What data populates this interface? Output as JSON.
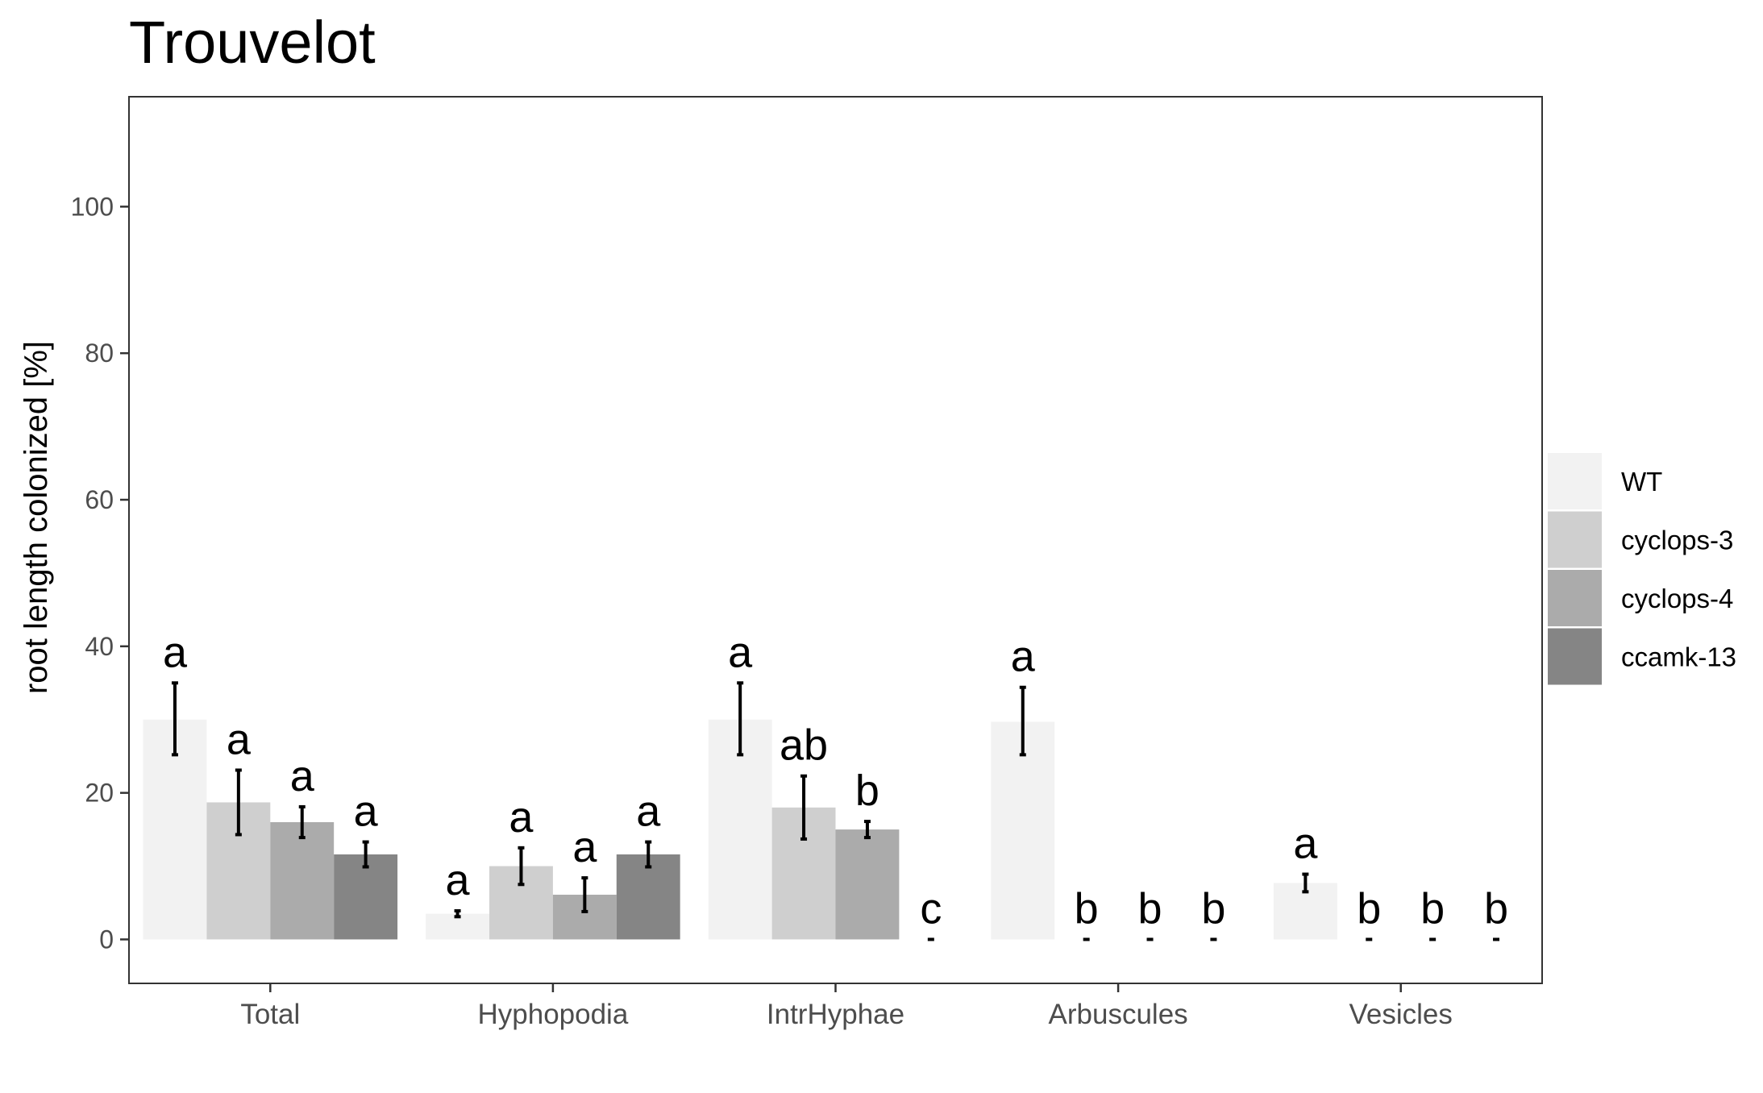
{
  "chart_data": {
    "type": "bar",
    "title": "Trouvelot",
    "xlabel": "",
    "ylabel": "root length colonized [%]",
    "ylim": [
      -6,
      115
    ],
    "yticks": [
      0,
      20,
      40,
      60,
      80,
      100
    ],
    "grid": false,
    "legend_position": "right",
    "categories": [
      "Total",
      "Hyphopodia",
      "IntrHyphae",
      "Arbuscules",
      "Vesicles"
    ],
    "series": [
      {
        "name": "WT",
        "color": "#f2f2f2",
        "values": [
          30,
          3.5,
          30,
          29.7,
          7.7
        ],
        "err_low": [
          25.2,
          3.1,
          25.2,
          25.2,
          6.5
        ],
        "err_high": [
          35,
          3.9,
          35,
          34.4,
          8.9
        ],
        "labels": [
          "a",
          "a",
          "a",
          "a",
          "a"
        ]
      },
      {
        "name": "cyclops-3",
        "color": "#cfcfcf",
        "values": [
          18.7,
          10,
          18,
          0,
          0
        ],
        "err_low": [
          14.3,
          7.5,
          13.7,
          0,
          0
        ],
        "err_high": [
          23.1,
          12.5,
          22.3,
          0,
          0
        ],
        "labels": [
          "a",
          "a",
          "ab",
          "b",
          "b"
        ]
      },
      {
        "name": "cyclops-4",
        "color": "#ababab",
        "values": [
          16,
          6.1,
          15,
          0,
          0
        ],
        "err_low": [
          13.9,
          3.8,
          13.9,
          0,
          0
        ],
        "err_high": [
          18.1,
          8.4,
          16.1,
          0,
          0
        ],
        "labels": [
          "a",
          "a",
          "b",
          "b",
          "b"
        ]
      },
      {
        "name": "ccamk-13",
        "color": "#858585",
        "values": [
          11.6,
          11.6,
          0,
          0,
          0
        ],
        "err_low": [
          9.9,
          9.9,
          0,
          0,
          0
        ],
        "err_high": [
          13.3,
          13.3,
          0,
          0,
          0
        ],
        "labels": [
          "a",
          "a",
          "c",
          "b",
          "b"
        ]
      }
    ]
  }
}
